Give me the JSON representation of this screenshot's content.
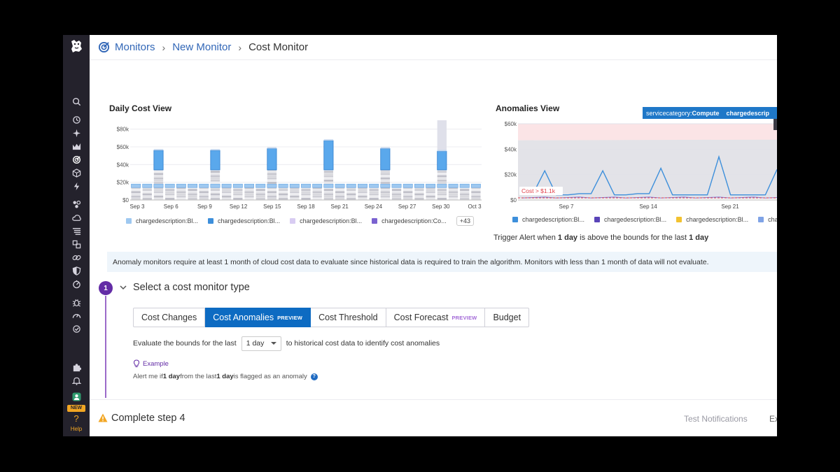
{
  "breadcrumb": {
    "items": [
      "Monitors",
      "New Monitor",
      "Cost Monitor"
    ]
  },
  "sidebar": {
    "icons": [
      "search-icon",
      "history-icon",
      "sparkle-icon",
      "dashboard-icon",
      "monitors-icon",
      "cube-icon",
      "lightning-icon",
      "integrations-icon",
      "cloud-icon",
      "logs-icon",
      "apm-icon",
      "link-icon",
      "shield-icon",
      "gauge-icon",
      "bug-icon",
      "speedometer-icon",
      "synthetics-icon",
      "puzzle-icon",
      "bell-icon",
      "user-icon",
      "help-icon"
    ],
    "new_badge": "NEW",
    "help_label": "Help"
  },
  "daily_cost": {
    "title": "Daily Cost View",
    "chart_data": {
      "type": "bar",
      "stacked": true,
      "title": "Daily Cost View",
      "ylim": [
        0,
        90000
      ],
      "y_ticks": [
        "$0",
        "$20k",
        "$40k",
        "$60k",
        "$80k"
      ],
      "x_ticks": [
        "Sep 3",
        "Sep 6",
        "Sep 9",
        "Sep 12",
        "Sep 15",
        "Sep 18",
        "Sep 21",
        "Sep 24",
        "Sep 27",
        "Sep 30",
        "Oct 3"
      ],
      "values": [
        18000,
        18000,
        56000,
        18000,
        18000,
        18000,
        18000,
        56000,
        18000,
        18000,
        18000,
        18000,
        58000,
        18000,
        18000,
        18000,
        18000,
        67000,
        18000,
        18000,
        18000,
        19000,
        58000,
        18000,
        18000,
        18000,
        18000,
        90000,
        18000,
        18000,
        18000
      ]
    },
    "legend": [
      {
        "label": "chargedescription:Bl...",
        "color": "#9ec8f0"
      },
      {
        "label": "chargedescription:Bl...",
        "color": "#3d8fdb"
      },
      {
        "label": "chargedescription:Bl...",
        "color": "#d8ccf2"
      },
      {
        "label": "chargedescription:Co...",
        "color": "#7a62d0"
      }
    ],
    "more": "+43"
  },
  "anomalies": {
    "title": "Anomalies View",
    "tooltip_key": "servicecategory:",
    "tooltip_val": "Compute",
    "tooltip_key2": "chargedescrip",
    "threshold_label": "Cost > $1.1k",
    "chart_data": {
      "type": "line",
      "title": "Anomalies View",
      "ylim": [
        0,
        60000
      ],
      "y_ticks": [
        "$0",
        "$20k",
        "$40k",
        "$60k"
      ],
      "x_ticks": [
        "Sep 7",
        "Sep 14",
        "Sep 21"
      ],
      "series": [
        {
          "values": [
            5000,
            5000,
            23000,
            4000,
            4000,
            5000,
            5000,
            23000,
            4000,
            4000,
            5000,
            5000,
            25000,
            4000,
            4000,
            4000,
            4000,
            34000,
            4000,
            4000,
            4000,
            4000,
            24000
          ]
        }
      ]
    },
    "legend": [
      {
        "label": "chargedescription:Bl...",
        "color": "#3d8fdb"
      },
      {
        "label": "chargedescription:Bl...",
        "color": "#5a44b8"
      },
      {
        "label": "chargedescription:Bl...",
        "color": "#f2c230"
      },
      {
        "label": "cha",
        "color": "#7fa3e6"
      }
    ]
  },
  "trigger": {
    "prefix": "Trigger Alert when ",
    "strong1": "1 day",
    "middle": " is above the bounds for the last ",
    "strong2": "1 day"
  },
  "banner": "Anomaly monitors require at least 1 month of cloud cost data to evaluate since historical data is required to train the algorithm. Monitors with less than 1 month of data will not evaluate.",
  "step1": {
    "number": "1",
    "title": "Select a cost monitor type",
    "tabs": [
      {
        "label": "Cost Changes",
        "badge": ""
      },
      {
        "label": "Cost Anomalies",
        "badge": "PREVIEW"
      },
      {
        "label": "Cost Threshold",
        "badge": ""
      },
      {
        "label": "Cost Forecast",
        "badge": "PREVIEW"
      },
      {
        "label": "Budget",
        "badge": ""
      }
    ],
    "eval_prefix": "Evaluate the bounds for the last",
    "eval_value": "1 day",
    "eval_suffix": "to historical cost data to identify cost anomalies",
    "example_label": "Example",
    "alert_prefix": "Alert me if ",
    "alert_strong1": "1 day",
    "alert_middle": " from the last ",
    "alert_strong2": "1 day",
    "alert_suffix": " is flagged as an anomaly",
    "help_q": "?"
  },
  "footer": {
    "complete_step": "Complete step 4",
    "test_notifications": "Test Notifications",
    "export": "Ex"
  }
}
